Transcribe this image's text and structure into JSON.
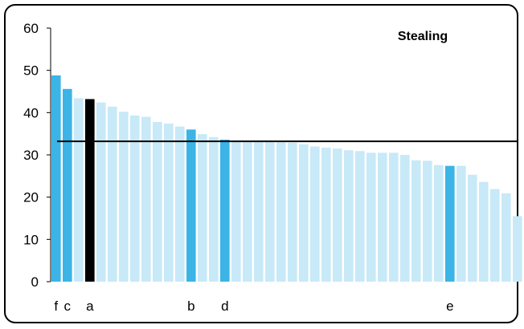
{
  "chart_data": {
    "type": "bar",
    "title": "Stealing",
    "xlabel": "",
    "ylabel": "",
    "ylim": [
      0,
      60
    ],
    "yticks": [
      0,
      10,
      20,
      30,
      40,
      50,
      60
    ],
    "grid": false,
    "legend": "none",
    "values": [
      48.8,
      45.6,
      43.4,
      43.2,
      42.4,
      41.4,
      40.2,
      39.3,
      39.0,
      37.8,
      37.4,
      36.7,
      36.0,
      34.9,
      34.2,
      33.6,
      33.4,
      33.3,
      33.2,
      33.1,
      33.0,
      32.9,
      32.5,
      32.0,
      31.7,
      31.5,
      31.1,
      30.9,
      30.5,
      30.5,
      30.5,
      30.0,
      28.7,
      28.6,
      27.6,
      27.4,
      27.4,
      25.3,
      23.6,
      21.9,
      20.9,
      15.5
    ],
    "highlight_colors": [
      "#3cb4e6",
      "#3cb4e6",
      "#c8e9f7",
      "#000000",
      "#c8e9f7",
      "#c8e9f7",
      "#c8e9f7",
      "#c8e9f7",
      "#c8e9f7",
      "#c8e9f7",
      "#c8e9f7",
      "#c8e9f7",
      "#3cb4e6",
      "#c8e9f7",
      "#c8e9f7",
      "#3cb4e6",
      "#c8e9f7",
      "#c8e9f7",
      "#c8e9f7",
      "#c8e9f7",
      "#c8e9f7",
      "#c8e9f7",
      "#c8e9f7",
      "#c8e9f7",
      "#c8e9f7",
      "#c8e9f7",
      "#c8e9f7",
      "#c8e9f7",
      "#c8e9f7",
      "#c8e9f7",
      "#c8e9f7",
      "#c8e9f7",
      "#c8e9f7",
      "#c8e9f7",
      "#c8e9f7",
      "#3cb4e6",
      "#c8e9f7",
      "#c8e9f7",
      "#c8e9f7",
      "#c8e9f7",
      "#c8e9f7",
      "#c8e9f7"
    ],
    "bar_labels": [
      "f",
      "c",
      "",
      "a",
      "",
      "",
      "",
      "",
      "",
      "",
      "",
      "",
      "b",
      "",
      "",
      "d",
      "",
      "",
      "",
      "",
      "",
      "",
      "",
      "",
      "",
      "",
      "",
      "",
      "",
      "",
      "",
      "",
      "",
      "",
      "",
      "e",
      "",
      "",
      "",
      "",
      "",
      ""
    ],
    "reference_line": {
      "value": 33.2,
      "color": "#000000"
    },
    "colors": {
      "base": "#c8e9f7",
      "highlight": "#3cb4e6",
      "focus": "#000000"
    }
  }
}
